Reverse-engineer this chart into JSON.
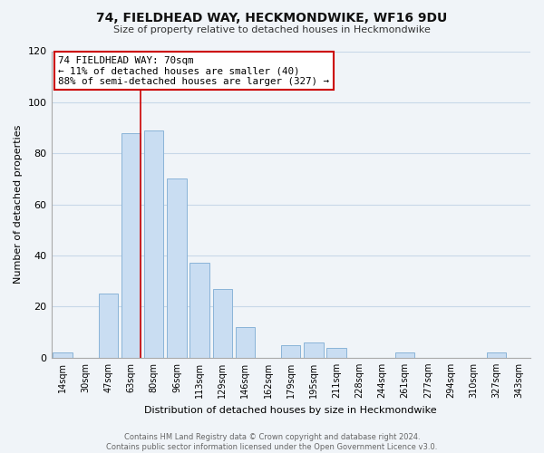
{
  "title": "74, FIELDHEAD WAY, HECKMONDWIKE, WF16 9DU",
  "subtitle": "Size of property relative to detached houses in Heckmondwike",
  "xlabel": "Distribution of detached houses by size in Heckmondwike",
  "ylabel": "Number of detached properties",
  "categories": [
    "14sqm",
    "30sqm",
    "47sqm",
    "63sqm",
    "80sqm",
    "96sqm",
    "113sqm",
    "129sqm",
    "146sqm",
    "162sqm",
    "179sqm",
    "195sqm",
    "211sqm",
    "228sqm",
    "244sqm",
    "261sqm",
    "277sqm",
    "294sqm",
    "310sqm",
    "327sqm",
    "343sqm"
  ],
  "values": [
    2,
    0,
    25,
    88,
    89,
    70,
    37,
    27,
    12,
    0,
    5,
    6,
    4,
    0,
    0,
    2,
    0,
    0,
    0,
    2,
    0
  ],
  "bar_color": "#c9ddf2",
  "bar_edge_color": "#8ab4d8",
  "vline_x_index": 3,
  "vline_color": "#cc0000",
  "annotation_line1": "74 FIELDHEAD WAY: 70sqm",
  "annotation_line2": "← 11% of detached houses are smaller (40)",
  "annotation_line3": "88% of semi-detached houses are larger (327) →",
  "annotation_box_color": "#ffffff",
  "annotation_box_edgecolor": "#cc0000",
  "ylim": [
    0,
    120
  ],
  "yticks": [
    0,
    20,
    40,
    60,
    80,
    100,
    120
  ],
  "footer_text": "Contains HM Land Registry data © Crown copyright and database right 2024.\nContains public sector information licensed under the Open Government Licence v3.0.",
  "background_color": "#f0f4f8",
  "plot_bg_color": "#f0f4f8",
  "grid_color": "#c8d8e8"
}
